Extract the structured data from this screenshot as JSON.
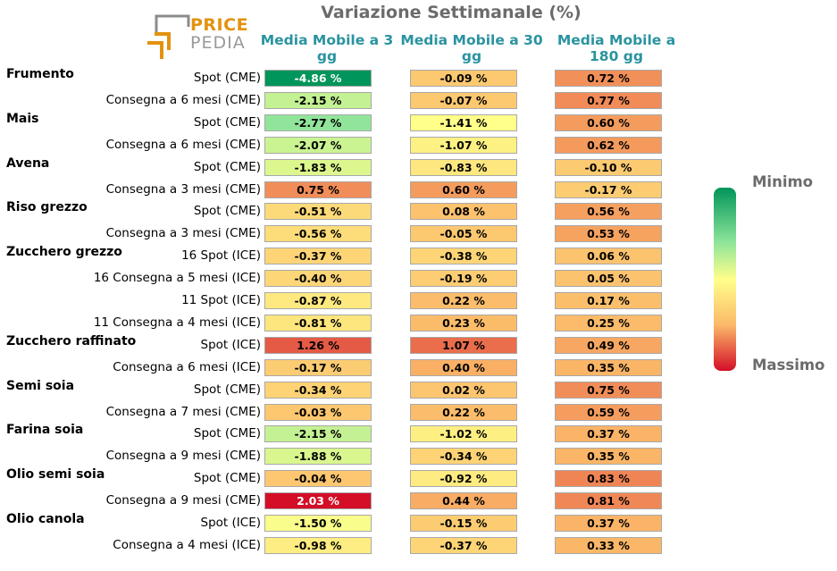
{
  "chart_data": {
    "type": "table",
    "title": "Variazione Settimanale (%)",
    "columns": [
      "Media Mobile a 3 gg",
      "Media Mobile a 30 gg",
      "Media Mobile a 180 gg"
    ],
    "rows": [
      {
        "group": "Frumento",
        "contract": "Spot (CME)",
        "values": [
          -4.86,
          -0.09,
          0.72
        ]
      },
      {
        "group": "",
        "contract": "Consegna a 6 mesi (CME)",
        "values": [
          -2.15,
          -0.07,
          0.77
        ]
      },
      {
        "group": "Mais",
        "contract": "Spot (CME)",
        "values": [
          -2.77,
          -1.41,
          0.6
        ]
      },
      {
        "group": "",
        "contract": "Consegna a 6 mesi (CME)",
        "values": [
          -2.07,
          -1.07,
          0.62
        ]
      },
      {
        "group": "Avena",
        "contract": "Spot (CME)",
        "values": [
          -1.83,
          -0.83,
          -0.1
        ]
      },
      {
        "group": "",
        "contract": "Consegna a 3 mesi (CME)",
        "values": [
          0.75,
          0.6,
          -0.17
        ]
      },
      {
        "group": "Riso grezzo",
        "contract": "Spot (CME)",
        "values": [
          -0.51,
          0.08,
          0.56
        ]
      },
      {
        "group": "",
        "contract": "Consegna a 3 mesi (CME)",
        "values": [
          -0.56,
          -0.05,
          0.53
        ]
      },
      {
        "group": "Zucchero grezzo",
        "contract": "16 Spot (ICE)",
        "values": [
          -0.37,
          -0.38,
          0.06
        ]
      },
      {
        "group": "",
        "contract": "16 Consegna a 5 mesi (ICE)",
        "values": [
          -0.4,
          -0.19,
          0.05
        ]
      },
      {
        "group": "",
        "contract": "11 Spot (ICE)",
        "values": [
          -0.87,
          0.22,
          0.17
        ]
      },
      {
        "group": "",
        "contract": "11 Consegna a 4 mesi (ICE)",
        "values": [
          -0.81,
          0.23,
          0.25
        ]
      },
      {
        "group": "Zucchero raffinato",
        "contract": "Spot (ICE)",
        "values": [
          1.26,
          1.07,
          0.49
        ]
      },
      {
        "group": "",
        "contract": "Consegna a 6 mesi (ICE)",
        "values": [
          -0.17,
          0.4,
          0.35
        ]
      },
      {
        "group": "Semi soia",
        "contract": "Spot (CME)",
        "values": [
          -0.34,
          0.02,
          0.75
        ]
      },
      {
        "group": "",
        "contract": "Consegna a 7 mesi (CME)",
        "values": [
          -0.03,
          0.22,
          0.59
        ]
      },
      {
        "group": "Farina soia",
        "contract": "Spot (CME)",
        "values": [
          -2.15,
          -1.02,
          0.37
        ]
      },
      {
        "group": "",
        "contract": "Consegna a 9 mesi (CME)",
        "values": [
          -1.88,
          -0.34,
          0.35
        ]
      },
      {
        "group": "Olio semi soia",
        "contract": "Spot (CME)",
        "values": [
          -0.04,
          -0.92,
          0.83
        ]
      },
      {
        "group": "",
        "contract": "Consegna a 9 mesi (CME)",
        "values": [
          2.03,
          0.44,
          0.81
        ]
      },
      {
        "group": "Olio canola",
        "contract": "Spot (ICE)",
        "values": [
          -1.5,
          -0.15,
          0.37
        ]
      },
      {
        "group": "",
        "contract": "Consegna a 4 mesi (ICE)",
        "values": [
          -0.98,
          -0.37,
          0.33
        ]
      }
    ],
    "colors": [
      "#8c8c8c",
      "#e3920f",
      "#2a93a0",
      "#6b6b6b",
      "#00955a",
      "#8fe59a",
      "#ffff8a",
      "#fbb969",
      "#d40e27"
    ],
    "scale_labels": {
      "min": "Minimo",
      "max": "Massimo"
    }
  },
  "logo": {
    "word1": "PRICE",
    "word2": "PEDIA"
  }
}
